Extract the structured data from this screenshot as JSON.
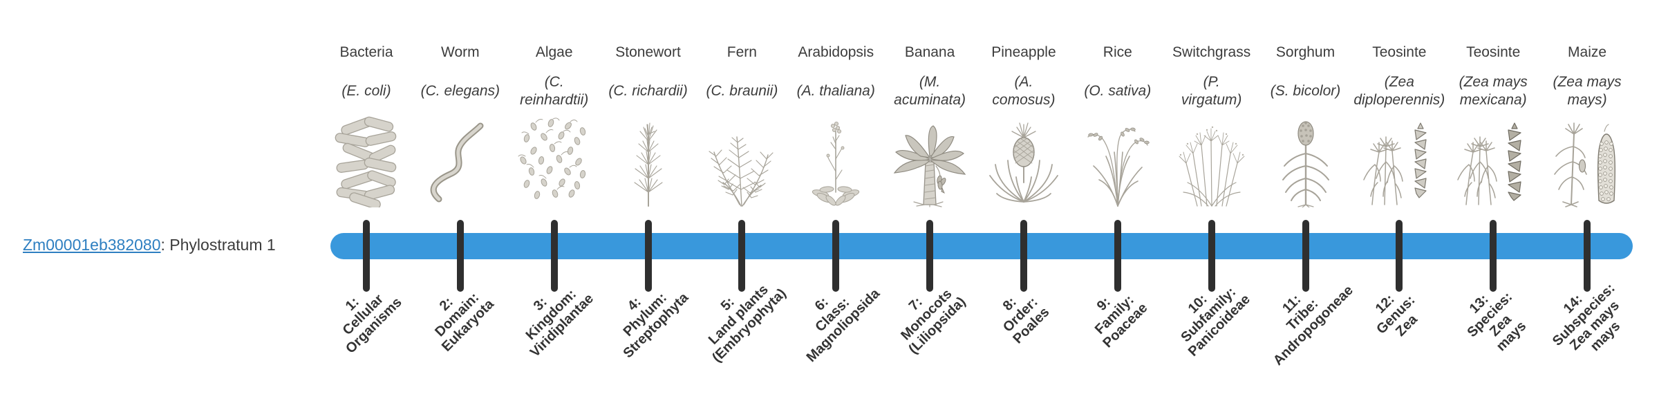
{
  "gene": {
    "id": "Zm00001eb382080",
    "suffix": ": Phylostratum 1"
  },
  "colors": {
    "bar": "#3998DC",
    "tick": "#2F2F2F",
    "link": "#2E7FC1",
    "text": "#3C3C3C"
  },
  "columns": [
    {
      "common": "Bacteria",
      "species": "(E. coli)",
      "icon": "bacteria-icon",
      "stratum": "1:\nCellular\nOrganisms"
    },
    {
      "common": "Worm",
      "species": "(C. elegans)",
      "icon": "worm-icon",
      "stratum": "2:\nDomain:\nEukaryota"
    },
    {
      "common": "Algae",
      "species": "(C.\nreinhardtii)",
      "icon": "algae-icon",
      "stratum": "3:\nKingdom:\nViridiplantae"
    },
    {
      "common": "Stonewort",
      "species": "(C. richardii)",
      "icon": "stonewort-icon",
      "stratum": "4:\nPhylum:\nStreptophyta"
    },
    {
      "common": "Fern",
      "species": "(C. braunii)",
      "icon": "fern-icon",
      "stratum": "5:\nLand plants\n(Embryophyta)"
    },
    {
      "common": "Arabidopsis",
      "species": "(A. thaliana)",
      "icon": "arabidopsis-icon",
      "stratum": "6:\nClass:\nMagnoliopsida"
    },
    {
      "common": "Banana",
      "species": "(M.\nacuminata)",
      "icon": "banana-icon",
      "stratum": "7:\nMonocots\n(Liliopsida)"
    },
    {
      "common": "Pineapple",
      "species": "(A.\ncomosus)",
      "icon": "pineapple-icon",
      "stratum": "8:\nOrder:\nPoales"
    },
    {
      "common": "Rice",
      "species": "(O. sativa)",
      "icon": "rice-icon",
      "stratum": "9:\nFamily:\nPoaceae"
    },
    {
      "common": "Switchgrass",
      "species": "(P.\nvirgatum)",
      "icon": "switchgrass-icon",
      "stratum": "10:\nSubfamily:\nPanicoideae"
    },
    {
      "common": "Sorghum",
      "species": "(S. bicolor)",
      "icon": "sorghum-icon",
      "stratum": "11:\nTribe:\nAndropogoneae"
    },
    {
      "common": "Teosinte",
      "species": "(Zea\ndiploperennis)",
      "icon": "teosinte-diplo-icon",
      "stratum": "12:\nGenus:\nZea"
    },
    {
      "common": "Teosinte",
      "species": "(Zea mays\nmexicana)",
      "icon": "teosinte-mex-icon",
      "stratum": "13:\nSpecies:\nZea\nmays"
    },
    {
      "common": "Maize",
      "species": "(Zea mays\nmays)",
      "icon": "maize-icon",
      "stratum": "14:\nSubspecies:\nZea mays\nmays"
    }
  ]
}
